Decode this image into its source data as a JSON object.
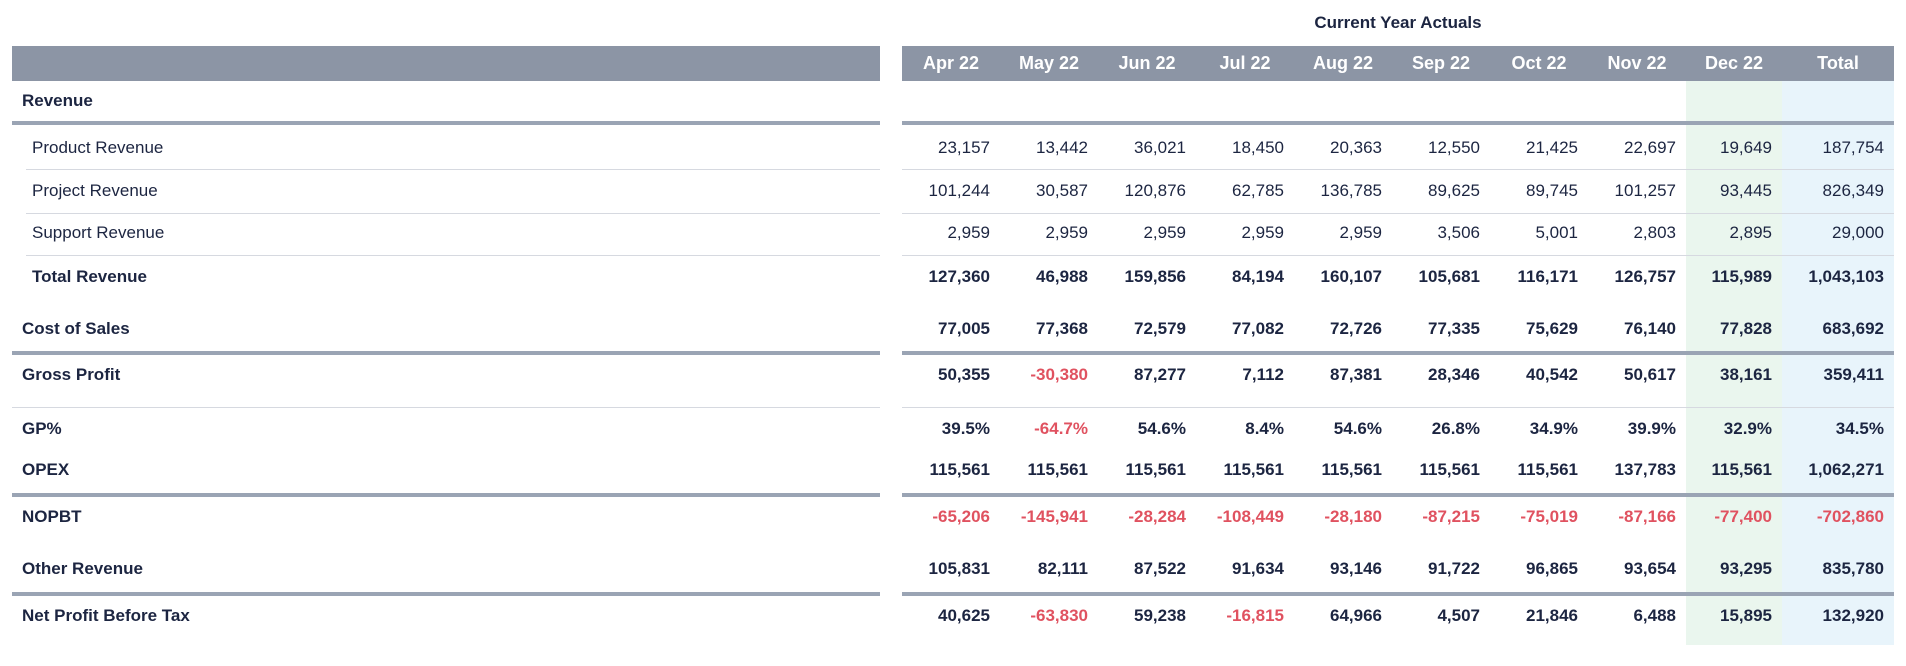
{
  "group_title": "Current Year Actuals",
  "columns": [
    "Apr 22",
    "May 22",
    "Jun 22",
    "Jul 22",
    "Aug 22",
    "Sep 22",
    "Oct 22",
    "Nov 22",
    "Dec 22",
    "Total"
  ],
  "highlight_colors": {
    "dec_column": "#eaf6ee",
    "total_column": "#e8f4fb",
    "header": "#8c95a5",
    "negative": "#e05260",
    "text": "#1c2541"
  },
  "rows": [
    {
      "label": "Revenue",
      "bold": true,
      "indent": false,
      "values": []
    },
    {
      "label": "Product Revenue",
      "bold": false,
      "indent": true,
      "values": [
        "23,157",
        "13,442",
        "36,021",
        "18,450",
        "20,363",
        "12,550",
        "21,425",
        "22,697",
        "19,649",
        "187,754"
      ]
    },
    {
      "label": "Project Revenue",
      "bold": false,
      "indent": true,
      "values": [
        "101,244",
        "30,587",
        "120,876",
        "62,785",
        "136,785",
        "89,625",
        "89,745",
        "101,257",
        "93,445",
        "826,349"
      ]
    },
    {
      "label": "Support Revenue",
      "bold": false,
      "indent": true,
      "values": [
        "2,959",
        "2,959",
        "2,959",
        "2,959",
        "2,959",
        "3,506",
        "5,001",
        "2,803",
        "2,895",
        "29,000"
      ]
    },
    {
      "label": "Total Revenue",
      "bold": true,
      "indent": true,
      "values": [
        "127,360",
        "46,988",
        "159,856",
        "84,194",
        "160,107",
        "105,681",
        "116,171",
        "126,757",
        "115,989",
        "1,043,103"
      ]
    },
    {
      "label": "Cost of Sales",
      "bold": true,
      "indent": false,
      "values": [
        "77,005",
        "77,368",
        "72,579",
        "77,082",
        "72,726",
        "77,335",
        "75,629",
        "76,140",
        "77,828",
        "683,692"
      ]
    },
    {
      "label": "Gross Profit",
      "bold": true,
      "indent": false,
      "values": [
        "50,355",
        "-30,380",
        "87,277",
        "7,112",
        "87,381",
        "28,346",
        "40,542",
        "50,617",
        "38,161",
        "359,411"
      ]
    },
    {
      "label": "GP%",
      "bold": true,
      "indent": false,
      "values": [
        "39.5%",
        "-64.7%",
        "54.6%",
        "8.4%",
        "54.6%",
        "26.8%",
        "34.9%",
        "39.9%",
        "32.9%",
        "34.5%"
      ]
    },
    {
      "label": "OPEX",
      "bold": true,
      "indent": false,
      "values": [
        "115,561",
        "115,561",
        "115,561",
        "115,561",
        "115,561",
        "115,561",
        "115,561",
        "137,783",
        "115,561",
        "1,062,271"
      ]
    },
    {
      "label": "NOPBT",
      "bold": true,
      "indent": false,
      "values": [
        "-65,206",
        "-145,941",
        "-28,284",
        "-108,449",
        "-28,180",
        "-87,215",
        "-75,019",
        "-87,166",
        "-77,400",
        "-702,860"
      ]
    },
    {
      "label": "Other Revenue",
      "bold": true,
      "indent": false,
      "values": [
        "105,831",
        "82,111",
        "87,522",
        "91,634",
        "93,146",
        "91,722",
        "96,865",
        "93,654",
        "93,295",
        "835,780"
      ]
    },
    {
      "label": "Net Profit Before Tax",
      "bold": true,
      "indent": false,
      "values": [
        "40,625",
        "-63,830",
        "59,238",
        "-16,815",
        "64,966",
        "4,507",
        "21,846",
        "6,488",
        "15,895",
        "132,920"
      ]
    }
  ]
}
